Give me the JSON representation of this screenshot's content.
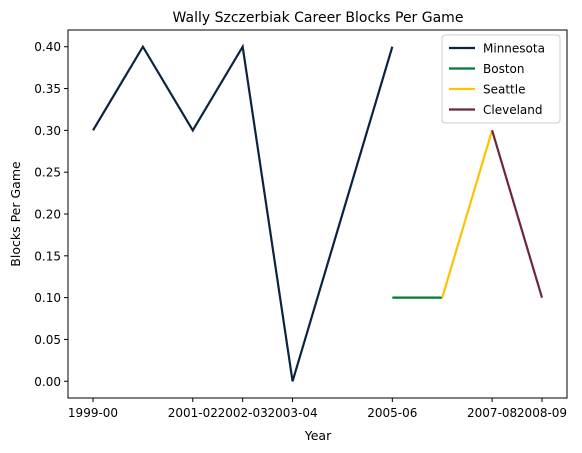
{
  "chart_data": {
    "type": "line",
    "title": "Wally Szczerbiak Career Blocks Per Game",
    "xlabel": "Year",
    "ylabel": "Blocks Per Game",
    "x_tick_labels": [
      "1999-00",
      "2001-02",
      "2002-03",
      "2003-04",
      "2005-06",
      "2007-08",
      "2008-09"
    ],
    "y_ticks": [
      0.0,
      0.05,
      0.1,
      0.15,
      0.2,
      0.25,
      0.3,
      0.35,
      0.4
    ],
    "y_tick_labels": [
      "0.00",
      "0.05",
      "0.10",
      "0.15",
      "0.20",
      "0.25",
      "0.30",
      "0.35",
      "0.40"
    ],
    "ylim": [
      -0.02,
      0.42
    ],
    "grid": false,
    "legend_position": "top-right",
    "series": [
      {
        "name": "Minnesota",
        "color": "#0c2340",
        "points": [
          {
            "x": "1999-00",
            "y": 0.3
          },
          {
            "x": "2000-01",
            "y": 0.4
          },
          {
            "x": "2001-02",
            "y": 0.3
          },
          {
            "x": "2002-03",
            "y": 0.4
          },
          {
            "x": "2003-04",
            "y": 0.0
          },
          {
            "x": "2004-05",
            "y": 0.2
          },
          {
            "x": "2005-06",
            "y": 0.4
          }
        ]
      },
      {
        "name": "Boston",
        "color": "#007a33",
        "points": [
          {
            "x": "2005-06",
            "y": 0.1
          },
          {
            "x": "2006-07",
            "y": 0.1
          }
        ]
      },
      {
        "name": "Seattle",
        "color": "#ffc200",
        "points": [
          {
            "x": "2006-07",
            "y": 0.1
          },
          {
            "x": "2007-08",
            "y": 0.3
          }
        ]
      },
      {
        "name": "Cleveland",
        "color": "#6f263d",
        "points": [
          {
            "x": "2007-08",
            "y": 0.3
          },
          {
            "x": "2008-09",
            "y": 0.1
          }
        ]
      }
    ]
  }
}
